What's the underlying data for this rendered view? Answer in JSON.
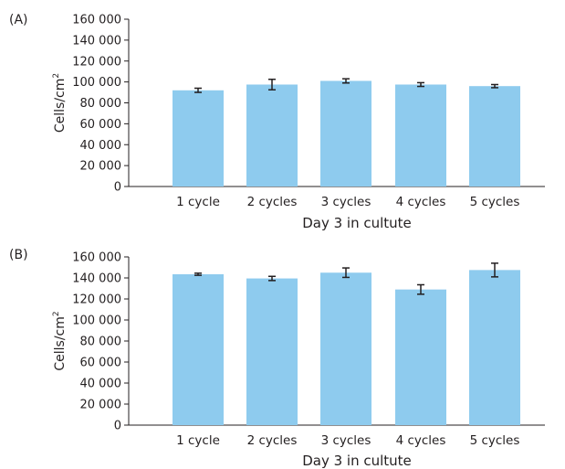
{
  "colors": {
    "bar": "#8ecbee",
    "axis": "#231f20",
    "error_bar": "#231f20"
  },
  "chart_data": [
    {
      "type": "bar",
      "panel_label": "(A)",
      "xlabel": "Day 3 in cultute",
      "ylabel": "Cells/cm",
      "ylabel_superscript": "2",
      "ylim": [
        0,
        160000
      ],
      "yticks": [
        0,
        20000,
        40000,
        60000,
        80000,
        100000,
        120000,
        140000,
        160000
      ],
      "ytick_labels": [
        "0",
        "20 000",
        "40 000",
        "60 000",
        "80 000",
        "100 000",
        "120 000",
        "140 000",
        "160 000"
      ],
      "categories": [
        "1 cycle",
        "2 cycles",
        "3 cycles",
        "4 cycles",
        "5 cycles"
      ],
      "values": [
        92000,
        97500,
        101000,
        97500,
        96000
      ],
      "errors": [
        2000,
        5000,
        2000,
        1800,
        1500
      ],
      "grid": false
    },
    {
      "type": "bar",
      "panel_label": "(B)",
      "xlabel": "Day 3 in cultute",
      "ylabel": "Cells/cm",
      "ylabel_superscript": "2",
      "ylim": [
        0,
        160000
      ],
      "yticks": [
        0,
        20000,
        40000,
        60000,
        80000,
        100000,
        120000,
        140000,
        160000
      ],
      "ytick_labels": [
        "0",
        "20 000",
        "40 000",
        "60 000",
        "80 000",
        "100 000",
        "120 000",
        "140 000",
        "160 000"
      ],
      "categories": [
        "1 cycle",
        "2 cycles",
        "3 cycles",
        "4 cycles",
        "5 cycles"
      ],
      "values": [
        143500,
        139500,
        145000,
        129000,
        147500
      ],
      "errors": [
        1000,
        2000,
        4500,
        4500,
        6500
      ],
      "grid": false
    }
  ]
}
